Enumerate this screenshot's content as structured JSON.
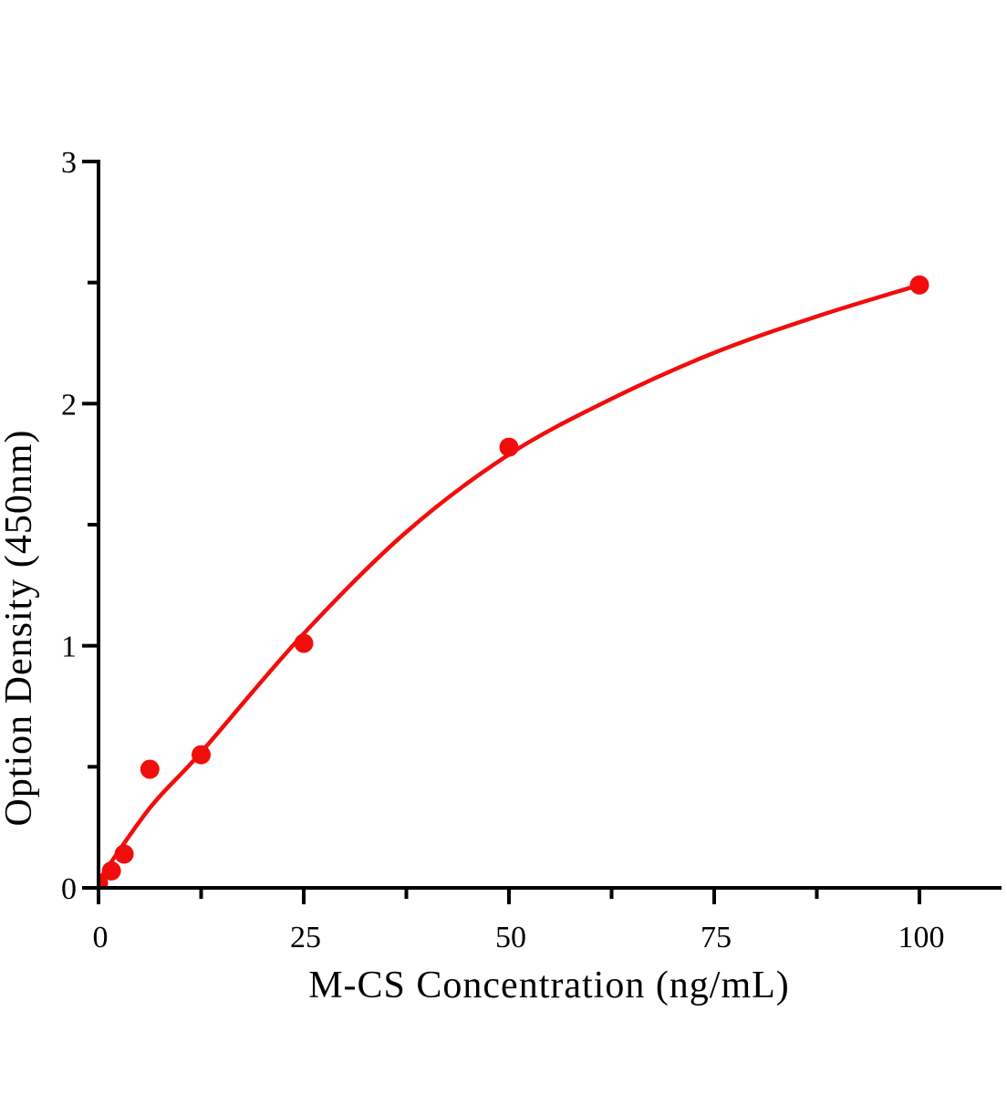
{
  "chart_data": {
    "type": "scatter",
    "subtype": "standard-curve-with-fit",
    "title": "",
    "xlabel": "M-CS Concentration（ng/mL）",
    "ylabel": "Option Density（450nm）",
    "xlim": [
      0,
      110
    ],
    "ylim": [
      0,
      3
    ],
    "grid": false,
    "legend": null,
    "x_ticks_major": [
      0,
      25,
      50,
      75,
      100
    ],
    "x_tick_labels": [
      "0",
      "25",
      "50",
      "75",
      "100"
    ],
    "x_ticks_minor": [
      12.5,
      37.5,
      62.5,
      87.5
    ],
    "y_ticks_major": [
      0,
      1,
      2,
      3
    ],
    "y_tick_labels": [
      "0",
      "1",
      "2",
      "3"
    ],
    "y_ticks_minor": [
      0.5,
      1.5,
      2.5
    ],
    "points": [
      {
        "x": 0,
        "y": 0.02
      },
      {
        "x": 1.5625,
        "y": 0.07
      },
      {
        "x": 3.125,
        "y": 0.14
      },
      {
        "x": 6.25,
        "y": 0.49
      },
      {
        "x": 12.5,
        "y": 0.55
      },
      {
        "x": 25,
        "y": 1.01
      },
      {
        "x": 50,
        "y": 1.82
      },
      {
        "x": 100,
        "y": 2.49
      }
    ],
    "fit_curve": [
      {
        "x": 0,
        "y": 0.03
      },
      {
        "x": 6.25,
        "y": 0.33
      },
      {
        "x": 12.5,
        "y": 0.56
      },
      {
        "x": 25,
        "y": 1.05
      },
      {
        "x": 37.5,
        "y": 1.47
      },
      {
        "x": 50,
        "y": 1.79
      },
      {
        "x": 62.5,
        "y": 2.02
      },
      {
        "x": 75,
        "y": 2.21
      },
      {
        "x": 87.5,
        "y": 2.36
      },
      {
        "x": 100,
        "y": 2.49
      }
    ],
    "colors": {
      "series": "#f20d0d",
      "axis": "#000000",
      "text": "#000000",
      "background": "#ffffff"
    }
  }
}
